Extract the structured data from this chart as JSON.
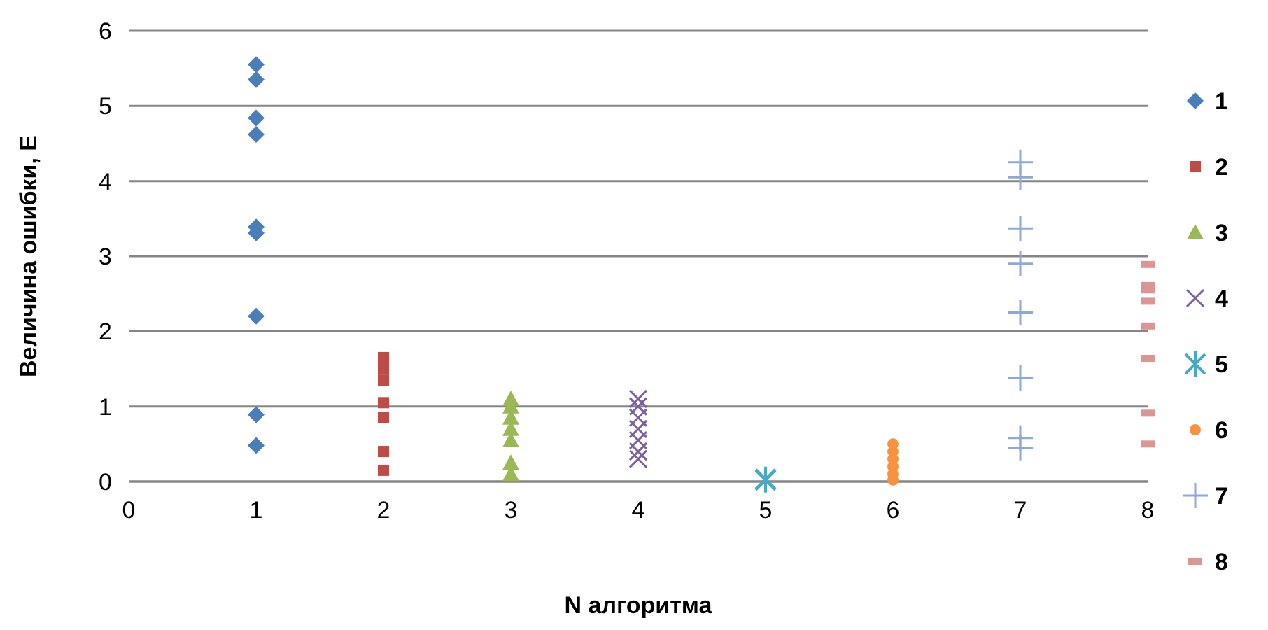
{
  "chart_data": {
    "type": "scatter",
    "xlabel": "N алгоритма",
    "ylabel": "Величина ошибки, E",
    "xlim": [
      0,
      8
    ],
    "xticks": [
      0,
      1,
      2,
      3,
      4,
      5,
      6,
      7,
      8
    ],
    "ylim": [
      0,
      6
    ],
    "yticks": [
      0,
      1,
      2,
      3,
      4,
      5,
      6
    ],
    "grid": "y",
    "legend": "right",
    "series": [
      {
        "name": "1",
        "color": "#4a7ebb",
        "marker": "diamond",
        "x": [
          1,
          1,
          1,
          1,
          1,
          1,
          1,
          1,
          1
        ],
        "values": [
          5.55,
          5.35,
          4.84,
          4.62,
          3.39,
          3.31,
          2.2,
          0.89,
          0.48
        ]
      },
      {
        "name": "2",
        "color": "#be4b48",
        "marker": "square",
        "x": [
          2,
          2,
          2,
          2,
          2,
          2,
          2
        ],
        "values": [
          1.65,
          1.5,
          1.35,
          1.05,
          0.85,
          0.4,
          0.15
        ]
      },
      {
        "name": "3",
        "color": "#98b954",
        "marker": "triangle",
        "x": [
          3,
          3,
          3,
          3,
          3,
          3,
          3
        ],
        "values": [
          1.1,
          1.0,
          0.85,
          0.7,
          0.55,
          0.25,
          0.1
        ]
      },
      {
        "name": "4",
        "color": "#7d60a0",
        "marker": "cross",
        "x": [
          4,
          4,
          4,
          4,
          4,
          4,
          4
        ],
        "values": [
          1.1,
          1.0,
          0.85,
          0.7,
          0.55,
          0.4,
          0.3
        ]
      },
      {
        "name": "5",
        "color": "#46aac5",
        "marker": "cross",
        "x": [
          5,
          5
        ],
        "values": [
          0.02,
          0.03
        ]
      },
      {
        "name": "6",
        "color": "#f69240",
        "marker": "circle",
        "x": [
          6,
          6,
          6,
          6,
          6,
          6
        ],
        "values": [
          0.5,
          0.4,
          0.3,
          0.2,
          0.1,
          0.02
        ]
      },
      {
        "name": "7",
        "color": "#8ea8d8",
        "marker": "cross",
        "x": [
          7,
          7,
          7,
          7,
          7,
          7,
          7,
          7
        ],
        "values": [
          4.25,
          4.05,
          3.37,
          2.9,
          2.25,
          1.38,
          0.58,
          0.45
        ]
      },
      {
        "name": "8",
        "color": "#d99694",
        "marker": "square",
        "x": [
          8,
          8,
          8,
          8,
          8,
          8,
          8,
          8
        ],
        "values": [
          2.89,
          2.61,
          2.55,
          2.4,
          2.07,
          1.64,
          0.91,
          0.5
        ]
      }
    ]
  }
}
